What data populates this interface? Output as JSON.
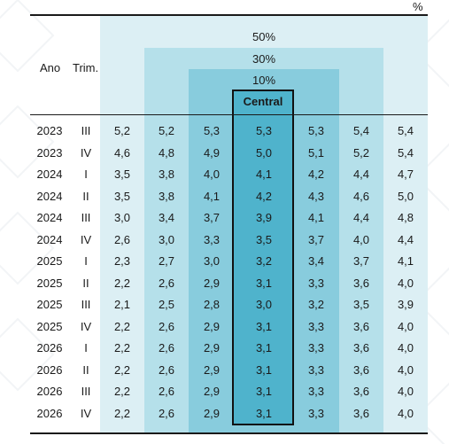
{
  "unit": "%",
  "headers": {
    "ano": "Ano",
    "trim": "Trim."
  },
  "bands": {
    "b50": "50%",
    "b30": "30%",
    "b10": "10%",
    "central": "Central"
  },
  "rows": [
    {
      "ano": "2023",
      "trim": "III",
      "v": [
        "5,2",
        "5,2",
        "5,3",
        "5,3",
        "5,3",
        "5,4",
        "5,4"
      ]
    },
    {
      "ano": "2023",
      "trim": "IV",
      "v": [
        "4,6",
        "4,8",
        "4,9",
        "5,0",
        "5,1",
        "5,2",
        "5,4"
      ]
    },
    {
      "ano": "2024",
      "trim": "I",
      "v": [
        "3,5",
        "3,8",
        "4,0",
        "4,1",
        "4,2",
        "4,4",
        "4,7"
      ]
    },
    {
      "ano": "2024",
      "trim": "II",
      "v": [
        "3,5",
        "3,8",
        "4,1",
        "4,2",
        "4,3",
        "4,6",
        "5,0"
      ]
    },
    {
      "ano": "2024",
      "trim": "III",
      "v": [
        "3,0",
        "3,4",
        "3,7",
        "3,9",
        "4,1",
        "4,4",
        "4,8"
      ]
    },
    {
      "ano": "2024",
      "trim": "IV",
      "v": [
        "2,6",
        "3,0",
        "3,3",
        "3,5",
        "3,7",
        "4,0",
        "4,4"
      ]
    },
    {
      "ano": "2025",
      "trim": "I",
      "v": [
        "2,3",
        "2,7",
        "3,0",
        "3,2",
        "3,4",
        "3,7",
        "4,1"
      ]
    },
    {
      "ano": "2025",
      "trim": "II",
      "v": [
        "2,2",
        "2,6",
        "2,9",
        "3,1",
        "3,3",
        "3,6",
        "4,0"
      ]
    },
    {
      "ano": "2025",
      "trim": "III",
      "v": [
        "2,1",
        "2,5",
        "2,8",
        "3,0",
        "3,2",
        "3,5",
        "3,9"
      ]
    },
    {
      "ano": "2025",
      "trim": "IV",
      "v": [
        "2,2",
        "2,6",
        "2,9",
        "3,1",
        "3,3",
        "3,6",
        "4,0"
      ]
    },
    {
      "ano": "2026",
      "trim": "I",
      "v": [
        "2,2",
        "2,6",
        "2,9",
        "3,1",
        "3,3",
        "3,6",
        "4,0"
      ]
    },
    {
      "ano": "2026",
      "trim": "II",
      "v": [
        "2,2",
        "2,6",
        "2,9",
        "3,1",
        "3,3",
        "3,6",
        "4,0"
      ]
    },
    {
      "ano": "2026",
      "trim": "III",
      "v": [
        "2,2",
        "2,6",
        "2,9",
        "3,1",
        "3,3",
        "3,6",
        "4,0"
      ]
    },
    {
      "ano": "2026",
      "trim": "IV",
      "v": [
        "2,2",
        "2,6",
        "2,9",
        "3,1",
        "3,3",
        "3,6",
        "4,0"
      ]
    }
  ]
}
